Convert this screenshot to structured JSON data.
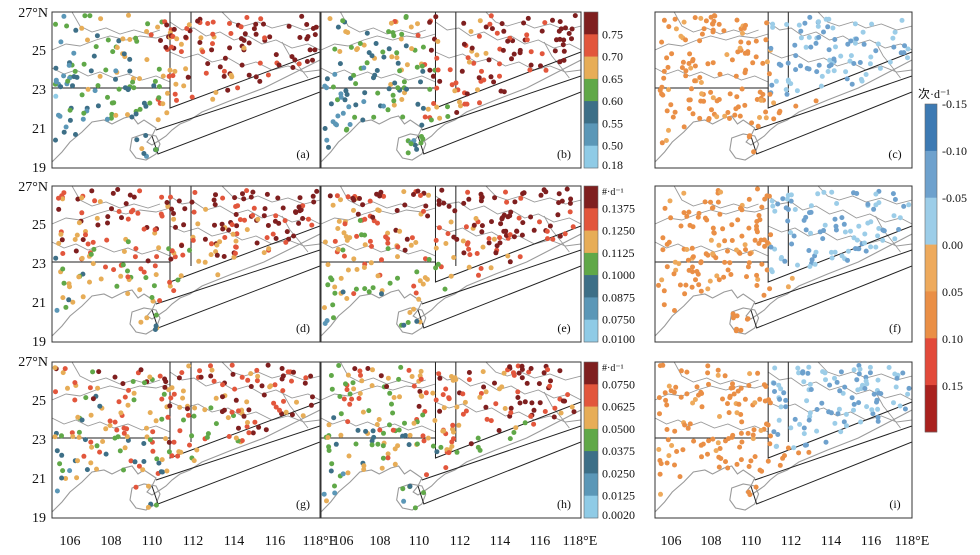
{
  "y_axis_labels": [
    "27°N",
    "25",
    "23",
    "21",
    "19"
  ],
  "x_axis_labels": [
    [
      "106",
      "108",
      "110",
      "112",
      "114",
      "116",
      "118°E"
    ],
    [
      "106",
      "108",
      "110",
      "112",
      "114",
      "116",
      "118°E"
    ],
    [
      "106",
      "108",
      "110",
      "112",
      "114",
      "116",
      "118°E"
    ]
  ],
  "panels": [
    {
      "label": "(a)",
      "scheme": "A"
    },
    {
      "label": "(b)",
      "scheme": "A"
    },
    {
      "label": "(c)",
      "scheme": "D"
    },
    {
      "label": "(d)",
      "scheme": "B"
    },
    {
      "label": "(e)",
      "scheme": "B"
    },
    {
      "label": "(f)",
      "scheme": "D"
    },
    {
      "label": "(g)",
      "scheme": "C"
    },
    {
      "label": "(h)",
      "scheme": "C"
    },
    {
      "label": "(i)",
      "scheme": "D"
    }
  ],
  "colorbars": [
    {
      "unit": "",
      "ticks": [
        "0.75",
        "0.70",
        "0.65",
        "0.60",
        "0.55",
        "0.50",
        "0.18"
      ]
    },
    {
      "unit": "#·d⁻¹",
      "ticks": [
        "0.1375",
        "0.1250",
        "0.1125",
        "0.1000",
        "0.0875",
        "0.0750",
        "0.0100"
      ]
    },
    {
      "unit": "#·d⁻¹",
      "ticks": [
        "0.0750",
        "0.0625",
        "0.0500",
        "0.0375",
        "0.0250",
        "0.0125",
        "0.0020"
      ]
    },
    {
      "unit": "次·d⁻¹",
      "ticks": [
        "-0.15",
        "-0.10",
        "-0.05",
        "0.00",
        "0.05",
        "0.10",
        "0.15"
      ]
    }
  ],
  "colors": {
    "seq": [
      "#8fcbe6",
      "#5b97b7",
      "#3d6f87",
      "#60a848",
      "#e7ad57",
      "#e2563c",
      "#7f1f1f"
    ],
    "div": [
      "#3d7ab3",
      "#6ea1cd",
      "#9ccde8",
      "#eeaa5c",
      "#ea8f46",
      "#e2493a",
      "#a9211e"
    ],
    "boundary": "#9a9a9a",
    "frame": "#333333"
  }
}
